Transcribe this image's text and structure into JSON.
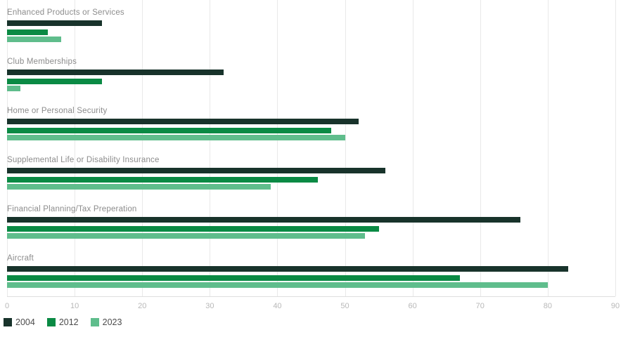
{
  "chart_data": {
    "type": "bar",
    "orientation": "horizontal",
    "title": "",
    "categories": [
      "Enhanced Products or Services",
      "Club Memberships",
      "Home or Personal Security",
      "Supplemental Life or Disability Insurance",
      "Financial Planning/Tax Preperation",
      "Aircraft"
    ],
    "series": [
      {
        "name": "2004",
        "color": "#18332b",
        "values": [
          14,
          32,
          52,
          56,
          76,
          83
        ]
      },
      {
        "name": "2012",
        "color": "#0a8a44",
        "values": [
          6,
          14,
          48,
          46,
          55,
          67
        ]
      },
      {
        "name": "2023",
        "color": "#5fbd8c",
        "values": [
          8,
          2,
          50,
          39,
          53,
          80
        ]
      }
    ],
    "x_axis": {
      "min": 0,
      "max": 90,
      "ticks": [
        0,
        10,
        20,
        30,
        40,
        50,
        60,
        70,
        80,
        90
      ]
    },
    "grid": true,
    "legend": {
      "position": "bottom-left",
      "entries": [
        "2004",
        "2012",
        "2023"
      ]
    }
  },
  "colors": {
    "gridline": "#e9e9e9",
    "axis_line": "#dedede",
    "category_label": "#8c8c8c",
    "tick_label": "#b8b8b8",
    "legend_text": "#4c4c4c",
    "background": "#ffffff"
  }
}
